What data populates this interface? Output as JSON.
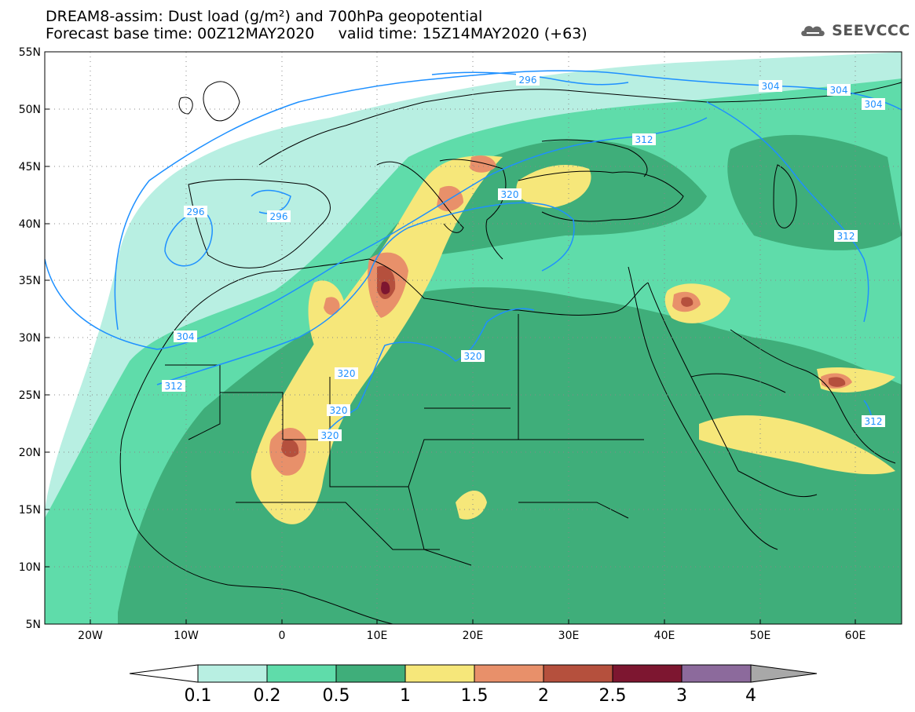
{
  "header": {
    "title_line1": "DREAM8-assim: Dust load (g/m²) and 700hPa geopotential",
    "title_line2": "Forecast base time: 00Z12MAY2020     valid time: 15Z14MAY2020 (+63)",
    "logo": "SEEVCCC"
  },
  "axes": {
    "lat_labels": [
      "55N",
      "50N",
      "45N",
      "40N",
      "35N",
      "30N",
      "25N",
      "20N",
      "15N",
      "10N",
      "5N"
    ],
    "lon_labels": [
      "20W",
      "10W",
      "0",
      "10E",
      "20E",
      "30E",
      "40E",
      "50E",
      "60E"
    ]
  },
  "contour_labels": [
    "296",
    "296",
    "296",
    "304",
    "304",
    "304",
    "304",
    "312",
    "312",
    "312",
    "312",
    "320",
    "320",
    "320",
    "320",
    "320"
  ],
  "colorbar": {
    "labels": [
      "0.1",
      "0.2",
      "0.5",
      "1",
      "1.5",
      "2",
      "2.5",
      "3",
      "4"
    ],
    "colors": [
      "#b8efe2",
      "#5fdcaa",
      "#3fae7a",
      "#f6e77a",
      "#e8906a",
      "#b5503d",
      "#7d1630",
      "#8c6a9c",
      "#a8a8a8"
    ]
  },
  "colors": {
    "contour": "#1e90ff",
    "land": "#000000"
  }
}
